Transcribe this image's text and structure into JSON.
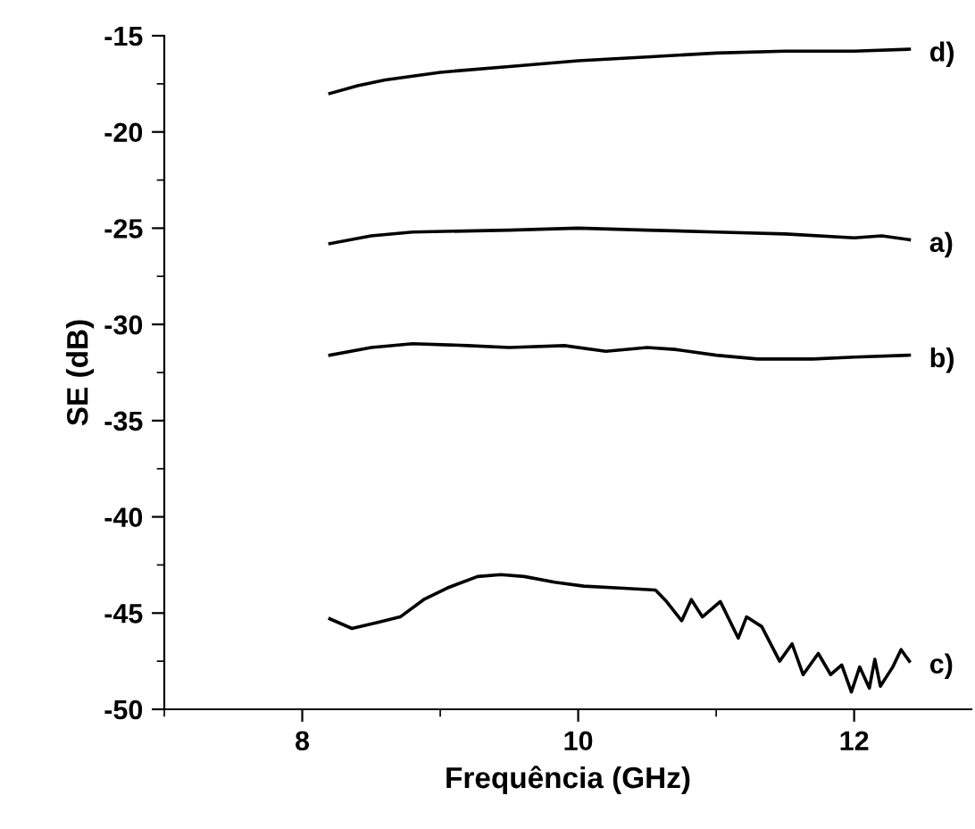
{
  "chart_data": {
    "type": "line",
    "xlabel": "Frequência (GHz)",
    "ylabel": "SE (dB)",
    "xlim": [
      7,
      12.85
    ],
    "ylim": [
      -50,
      -15
    ],
    "xticks": [
      8,
      10,
      12
    ],
    "yticks": [
      -50,
      -45,
      -40,
      -35,
      -30,
      -25,
      -20,
      -15
    ],
    "grid": false,
    "legend": false,
    "marker": "none",
    "line_style": "solid",
    "series": [
      {
        "name": "d)",
        "color": "#000000",
        "x": [
          8.2,
          8.4,
          8.6,
          8.8,
          9.0,
          9.5,
          10,
          10.5,
          11,
          11.5,
          12,
          12.4
        ],
        "values": [
          -18.0,
          -17.6,
          -17.3,
          -17.1,
          -16.9,
          -16.6,
          -16.3,
          -16.1,
          -15.9,
          -15.8,
          -15.8,
          -15.7
        ]
      },
      {
        "name": "a)",
        "color": "#000000",
        "x": [
          8.2,
          8.5,
          8.8,
          9.5,
          10,
          10.5,
          11,
          11.5,
          12,
          12.2,
          12.4
        ],
        "values": [
          -25.8,
          -25.4,
          -25.2,
          -25.1,
          -25.0,
          -25.1,
          -25.2,
          -25.3,
          -25.5,
          -25.4,
          -25.6
        ]
      },
      {
        "name": "b)",
        "color": "#000000",
        "x": [
          8.2,
          8.5,
          8.8,
          9.2,
          9.5,
          9.9,
          10.2,
          10.5,
          10.7,
          11,
          11.3,
          11.7,
          12,
          12.4
        ],
        "values": [
          -31.6,
          -31.2,
          -31.0,
          -31.1,
          -31.2,
          -31.1,
          -31.4,
          -31.2,
          -31.3,
          -31.6,
          -31.8,
          -31.8,
          -31.7,
          -31.6
        ]
      },
      {
        "name": "c)",
        "color": "#000000",
        "x": [
          8.2,
          8.36,
          8.54,
          8.71,
          8.88,
          9.05,
          9.27,
          9.44,
          9.61,
          9.83,
          10.04,
          10.3,
          10.56,
          10.64,
          10.75,
          10.82,
          10.9,
          11.03,
          11.16,
          11.22,
          11.33,
          11.46,
          11.55,
          11.63,
          11.74,
          11.83,
          11.91,
          11.98,
          12.04,
          12.11,
          12.15,
          12.19,
          12.28,
          12.34,
          12.4
        ],
        "values": [
          -45.3,
          -45.8,
          -45.5,
          -45.2,
          -44.3,
          -43.7,
          -43.1,
          -43.0,
          -43.1,
          -43.4,
          -43.6,
          -43.7,
          -43.8,
          -44.4,
          -45.4,
          -44.3,
          -45.2,
          -44.4,
          -46.3,
          -45.2,
          -45.7,
          -47.5,
          -46.6,
          -48.2,
          -47.1,
          -48.2,
          -47.7,
          -49.1,
          -47.8,
          -48.9,
          -47.4,
          -48.8,
          -47.8,
          -46.9,
          -47.5
        ]
      }
    ]
  }
}
